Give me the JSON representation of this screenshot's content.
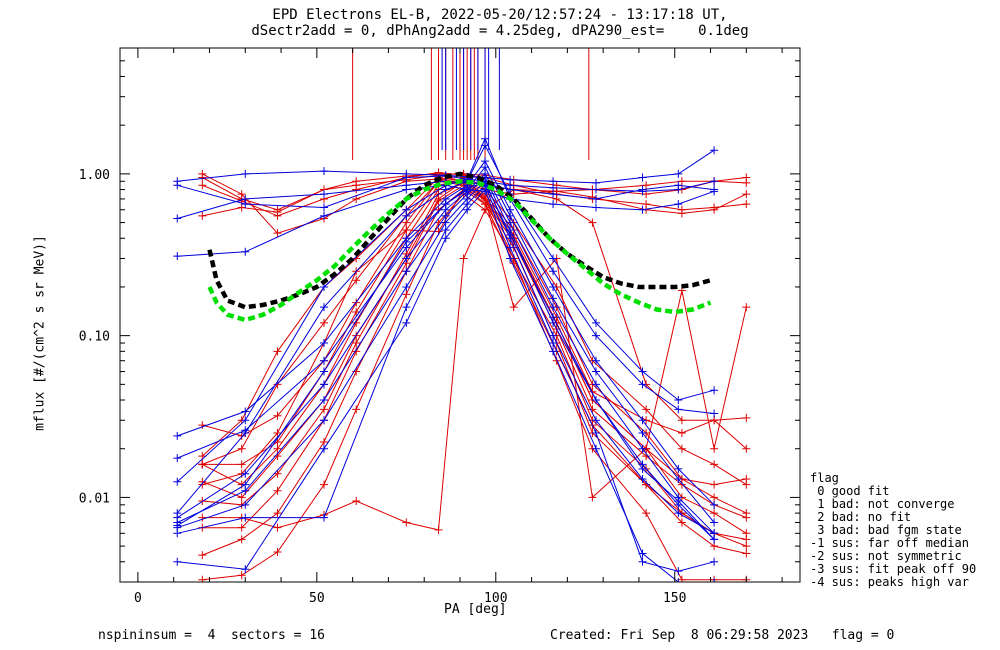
{
  "chart_data": {
    "type": "line",
    "title": "EPD Electrons EL-B, 2022-05-20/12:57:24 - 13:17:18 UT,",
    "subtitle": "dSectr2add = 0, dPhAng2add = 4.25deg, dPA290_est=    0.1deg",
    "xlabel": "PA [deg]",
    "ylabel": "mflux [#/(cm^2 s sr MeV)]",
    "xlim": [
      -5,
      185
    ],
    "ylim": [
      0.003,
      6
    ],
    "yscale": "log",
    "xticks": [
      0,
      50,
      100,
      150
    ],
    "yticks": [
      {
        "value": 0.01,
        "label": "0.01"
      },
      {
        "value": 0.1,
        "label": "0.10"
      },
      {
        "value": 1,
        "label": "1.00"
      }
    ],
    "grid": false,
    "legend_placement": "right",
    "colors": {
      "red": "#dd0000",
      "blue": "#0000dd",
      "black": "#000000",
      "green": "#00e000"
    },
    "fits": [
      {
        "color": "black",
        "x": [
          20,
          22,
          25,
          30,
          35,
          40,
          45,
          50,
          55,
          60,
          65,
          70,
          75,
          80,
          85,
          90,
          95,
          100,
          105,
          110,
          115,
          120,
          125,
          130,
          135,
          140,
          145,
          150,
          155,
          160
        ],
        "y": [
          0.34,
          0.22,
          0.165,
          0.15,
          0.155,
          0.165,
          0.18,
          0.2,
          0.24,
          0.3,
          0.4,
          0.53,
          0.7,
          0.85,
          0.95,
          1.0,
          0.95,
          0.85,
          0.7,
          0.53,
          0.4,
          0.32,
          0.27,
          0.23,
          0.21,
          0.2,
          0.2,
          0.2,
          0.205,
          0.22
        ]
      },
      {
        "color": "green",
        "x": [
          20,
          22,
          25,
          30,
          35,
          40,
          45,
          50,
          55,
          60,
          65,
          70,
          75,
          80,
          85,
          90,
          95,
          100,
          105,
          110,
          115,
          120,
          125,
          130,
          135,
          140,
          145,
          150,
          155,
          160
        ],
        "y": [
          0.2,
          0.16,
          0.135,
          0.125,
          0.135,
          0.155,
          0.185,
          0.22,
          0.27,
          0.35,
          0.45,
          0.57,
          0.7,
          0.8,
          0.87,
          0.9,
          0.88,
          0.8,
          0.68,
          0.52,
          0.4,
          0.32,
          0.26,
          0.21,
          0.18,
          0.16,
          0.145,
          0.14,
          0.145,
          0.16
        ]
      }
    ],
    "series": [
      {
        "color": "red",
        "x": [
          18,
          29,
          39,
          52,
          61,
          75,
          84,
          91,
          97,
          105,
          117,
          127,
          142,
          152,
          161,
          170
        ],
        "y": [
          0.95,
          0.7,
          0.6,
          0.8,
          0.9,
          0.97,
          1.0,
          1.0,
          0.98,
          0.92,
          0.85,
          0.8,
          0.75,
          0.8,
          0.9,
          0.95
        ]
      },
      {
        "color": "red",
        "x": [
          18,
          29,
          39,
          52,
          61,
          75,
          84,
          91,
          97,
          105,
          117,
          127,
          142,
          152,
          161,
          170
        ],
        "y": [
          0.85,
          0.68,
          0.55,
          0.7,
          0.8,
          0.95,
          1.02,
          0.98,
          0.95,
          0.85,
          0.75,
          0.7,
          0.65,
          0.6,
          0.62,
          0.65
        ]
      },
      {
        "color": "red",
        "x": [
          18,
          29,
          39,
          52,
          61,
          75,
          84,
          91,
          97,
          105,
          117,
          127,
          142,
          152,
          161,
          170
        ],
        "y": [
          0.55,
          0.62,
          0.58,
          0.8,
          0.85,
          0.92,
          0.98,
          0.9,
          0.85,
          0.8,
          0.78,
          0.8,
          0.85,
          0.9,
          0.9,
          0.88
        ]
      },
      {
        "color": "red",
        "x": [
          18,
          29,
          39,
          52,
          61,
          75,
          84,
          91,
          97,
          105,
          117,
          127,
          142,
          152,
          161,
          170
        ],
        "y": [
          1.0,
          0.75,
          0.43,
          0.53,
          0.7,
          0.9,
          0.93,
          0.88,
          0.8,
          0.75,
          0.78,
          0.72,
          0.6,
          0.57,
          0.6,
          0.75
        ]
      },
      {
        "color": "red",
        "x": [
          18,
          29,
          39,
          52,
          61,
          75,
          84,
          91,
          97,
          105,
          117,
          127,
          142,
          152,
          161,
          170
        ],
        "y": [
          0.016,
          0.012,
          0.02,
          0.05,
          0.12,
          0.4,
          0.8,
          0.95,
          0.7,
          0.4,
          0.12,
          0.04,
          0.02,
          0.01,
          0.008,
          0.006
        ]
      },
      {
        "color": "red",
        "x": [
          18,
          29,
          39,
          52,
          61,
          75,
          84,
          91,
          97,
          105,
          117,
          127,
          142,
          152,
          161,
          170
        ],
        "y": [
          0.0125,
          0.01,
          0.018,
          0.04,
          0.1,
          0.3,
          0.7,
          0.9,
          0.75,
          0.45,
          0.15,
          0.05,
          0.025,
          0.013,
          0.01,
          0.008
        ]
      },
      {
        "color": "red",
        "x": [
          18,
          29,
          39,
          52,
          61,
          75,
          84,
          91,
          97,
          105,
          117,
          127,
          142,
          152,
          161,
          170
        ],
        "y": [
          0.028,
          0.024,
          0.032,
          0.07,
          0.16,
          0.5,
          0.9,
          1.0,
          0.8,
          0.5,
          0.2,
          0.07,
          0.035,
          0.02,
          0.016,
          0.012
        ]
      },
      {
        "color": "red",
        "x": [
          18,
          29,
          39,
          52,
          61,
          75,
          84,
          91,
          97,
          105,
          117,
          127,
          142,
          152,
          161,
          170
        ],
        "y": [
          0.016,
          0.016,
          0.022,
          0.06,
          0.14,
          0.45,
          0.85,
          0.92,
          0.72,
          0.42,
          0.13,
          0.045,
          0.03,
          0.025,
          0.03,
          0.02
        ]
      },
      {
        "color": "red",
        "x": [
          18,
          29,
          39,
          52,
          61,
          75,
          84,
          91,
          97,
          105,
          117,
          127,
          142,
          152,
          161,
          170
        ],
        "y": [
          0.0095,
          0.009,
          0.014,
          0.035,
          0.09,
          0.32,
          0.75,
          0.88,
          0.68,
          0.38,
          0.11,
          0.035,
          0.018,
          0.012,
          0.009,
          0.0075
        ]
      },
      {
        "color": "red",
        "x": [
          18,
          29,
          39,
          52,
          61,
          75,
          84,
          91,
          97,
          105,
          117,
          127,
          142,
          152,
          161,
          170
        ],
        "y": [
          0.0065,
          0.0065,
          0.011,
          0.03,
          0.08,
          0.28,
          0.68,
          0.85,
          0.7,
          0.4,
          0.12,
          0.04,
          0.02,
          0.013,
          0.012,
          0.013
        ]
      },
      {
        "color": "red",
        "x": [
          18,
          29,
          39,
          52,
          61,
          75,
          84,
          91,
          97,
          105,
          117,
          127,
          142,
          152,
          161,
          170
        ],
        "y": [
          0.0044,
          0.0055,
          0.008,
          0.022,
          0.06,
          0.25,
          0.6,
          0.8,
          0.65,
          0.35,
          0.09,
          0.025,
          0.012,
          0.008,
          0.006,
          0.005
        ]
      },
      {
        "color": "red",
        "x": [
          18,
          29,
          39,
          52,
          61,
          75,
          84,
          91,
          97,
          105,
          117,
          127,
          142,
          152,
          161,
          170
        ],
        "y": [
          0.0031,
          0.0033,
          0.0046,
          0.012,
          0.035,
          0.18,
          0.5,
          0.75,
          0.6,
          0.3,
          0.07,
          0.02,
          0.008,
          0.0031,
          0.0031,
          0.0031
        ]
      },
      {
        "color": "red",
        "x": [
          18,
          29,
          39,
          52,
          61,
          75,
          84,
          91,
          97,
          105,
          117,
          127,
          142,
          152,
          161,
          170
        ],
        "y": [
          0.0075,
          0.0075,
          0.0065,
          0.0078,
          0.0095,
          0.007,
          0.0063,
          0.3,
          0.6,
          0.8,
          0.7,
          0.5,
          0.05,
          0.03,
          0.03,
          0.031
        ]
      },
      {
        "color": "red",
        "x": [
          18,
          29,
          39,
          52,
          61,
          75,
          84,
          91,
          97,
          105,
          117,
          127,
          142,
          152,
          161,
          170
        ],
        "y": [
          0.012,
          0.014,
          0.025,
          0.09,
          0.25,
          0.45,
          0.44,
          0.8,
          0.7,
          0.15,
          0.3,
          0.01,
          0.02,
          0.19,
          0.02,
          0.15
        ]
      },
      {
        "color": "red",
        "x": [
          18,
          29,
          39,
          52,
          61,
          75,
          84,
          91,
          97,
          105,
          117,
          127,
          142,
          152,
          161,
          170
        ],
        "y": [
          0.018,
          0.03,
          0.08,
          0.2,
          0.3,
          0.6,
          0.95,
          0.9,
          0.7,
          0.3,
          0.1,
          0.03,
          0.015,
          0.008,
          0.006,
          0.0055
        ]
      },
      {
        "color": "red",
        "x": [
          18,
          29,
          39,
          52,
          61,
          75,
          84,
          91,
          97,
          105,
          117,
          127,
          142,
          152,
          161,
          170
        ],
        "y": [
          0.016,
          0.02,
          0.05,
          0.12,
          0.22,
          0.55,
          0.9,
          0.85,
          0.65,
          0.28,
          0.08,
          0.028,
          0.012,
          0.007,
          0.005,
          0.0045
        ]
      },
      {
        "color": "blue",
        "x": [
          11,
          30,
          52,
          75,
          86,
          92,
          97,
          104,
          116,
          128,
          141,
          151,
          161
        ],
        "y": [
          0.9,
          1.0,
          1.04,
          1.0,
          0.98,
          0.96,
          0.95,
          0.92,
          0.9,
          0.88,
          0.95,
          1.0,
          1.4
        ]
      },
      {
        "color": "blue",
        "x": [
          11,
          30,
          52,
          75,
          86,
          92,
          97,
          104,
          116,
          128,
          141,
          151,
          161
        ],
        "y": [
          0.85,
          0.65,
          0.62,
          0.95,
          0.97,
          0.93,
          0.9,
          0.85,
          0.82,
          0.8,
          0.78,
          0.8,
          0.9
        ]
      },
      {
        "color": "blue",
        "x": [
          11,
          30,
          52,
          75,
          86,
          92,
          97,
          104,
          116,
          128,
          141,
          151,
          161
        ],
        "y": [
          0.53,
          0.7,
          0.75,
          0.85,
          0.9,
          0.88,
          0.87,
          0.8,
          0.75,
          0.7,
          0.8,
          0.85,
          0.8
        ]
      },
      {
        "color": "blue",
        "x": [
          11,
          30,
          52,
          75,
          86,
          92,
          97,
          104,
          116,
          128,
          141,
          151,
          161
        ],
        "y": [
          0.31,
          0.33,
          0.55,
          0.8,
          0.85,
          0.8,
          0.78,
          0.7,
          0.65,
          0.62,
          0.6,
          0.65,
          0.78
        ]
      },
      {
        "color": "blue",
        "x": [
          11,
          30,
          52,
          75,
          86,
          92,
          97,
          104,
          116,
          128,
          141,
          151,
          161
        ],
        "y": [
          0.024,
          0.034,
          0.09,
          0.4,
          0.7,
          0.85,
          1.2,
          0.6,
          0.2,
          0.07,
          0.03,
          0.015,
          0.009
        ]
      },
      {
        "color": "blue",
        "x": [
          11,
          30,
          52,
          75,
          86,
          92,
          97,
          104,
          116,
          128,
          141,
          151,
          161
        ],
        "y": [
          0.0175,
          0.026,
          0.07,
          0.35,
          0.65,
          0.8,
          1.1,
          0.55,
          0.17,
          0.06,
          0.025,
          0.013,
          0.007
        ]
      },
      {
        "color": "blue",
        "x": [
          11,
          30,
          52,
          75,
          86,
          92,
          97,
          104,
          116,
          128,
          141,
          151,
          161
        ],
        "y": [
          0.0075,
          0.014,
          0.05,
          0.3,
          0.6,
          0.78,
          1.0,
          0.5,
          0.15,
          0.05,
          0.02,
          0.01,
          0.006
        ]
      },
      {
        "color": "blue",
        "x": [
          11,
          30,
          52,
          75,
          86,
          92,
          97,
          104,
          116,
          128,
          141,
          151,
          161
        ],
        "y": [
          0.007,
          0.011,
          0.04,
          0.25,
          0.55,
          0.75,
          0.95,
          0.45,
          0.12,
          0.04,
          0.016,
          0.009,
          0.0055
        ]
      },
      {
        "color": "blue",
        "x": [
          11,
          30,
          52,
          75,
          86,
          92,
          97,
          104,
          116,
          128,
          141,
          151,
          161
        ],
        "y": [
          0.0065,
          0.009,
          0.03,
          0.2,
          0.5,
          0.7,
          0.9,
          0.4,
          0.1,
          0.03,
          0.013,
          0.008,
          0.006
        ]
      },
      {
        "color": "blue",
        "x": [
          11,
          30,
          52,
          75,
          86,
          92,
          97,
          104,
          116,
          128,
          141,
          151,
          161
        ],
        "y": [
          0.006,
          0.0075,
          0.0075,
          0.15,
          0.45,
          0.65,
          0.85,
          0.35,
          0.09,
          0.025,
          0.004,
          0.0035,
          0.004
        ]
      },
      {
        "color": "blue",
        "x": [
          11,
          30,
          52,
          75,
          86,
          92,
          97,
          104,
          116,
          128,
          141,
          151,
          161
        ],
        "y": [
          0.004,
          0.0036,
          0.02,
          0.12,
          0.4,
          0.6,
          0.8,
          0.3,
          0.08,
          0.02,
          0.0045,
          0.003,
          0.003
        ]
      },
      {
        "color": "blue",
        "x": [
          11,
          30,
          52,
          75,
          86,
          92,
          97,
          104,
          116,
          128,
          141,
          151,
          161
        ],
        "y": [
          0.008,
          0.025,
          0.15,
          0.55,
          0.8,
          0.9,
          1.5,
          0.75,
          0.3,
          0.12,
          0.06,
          0.04,
          0.046
        ]
      },
      {
        "color": "blue",
        "x": [
          11,
          30,
          52,
          75,
          86,
          92,
          97,
          104,
          116,
          128,
          141,
          151,
          161
        ],
        "y": [
          0.0125,
          0.03,
          0.2,
          0.6,
          0.85,
          0.92,
          1.65,
          0.7,
          0.25,
          0.1,
          0.05,
          0.035,
          0.033
        ]
      },
      {
        "color": "blue",
        "x": [
          11,
          30,
          52,
          75,
          86,
          92,
          97,
          104,
          116,
          128,
          141,
          151,
          161
        ],
        "y": [
          0.0067,
          0.012,
          0.06,
          0.38,
          0.65,
          0.82,
          0.88,
          0.42,
          0.13,
          0.04,
          0.015,
          0.0095,
          0.0055
        ]
      }
    ],
    "spikes": [
      {
        "color": "red",
        "x": [
          60,
          82,
          84,
          86,
          88,
          90,
          91,
          92,
          93,
          94,
          95,
          97,
          126
        ]
      },
      {
        "color": "blue",
        "x": [
          85,
          86,
          89,
          91,
          93,
          95,
          97,
          98,
          101
        ]
      }
    ]
  },
  "legend": {
    "title": "flag",
    "items": [
      " 0 good fit",
      " 1 bad: not converge",
      " 2 bad: no fit",
      " 3 bad: bad fgm state",
      "-1 sus: far off median",
      "-2 sus: not symmetric",
      "-3 sus: fit peak off 90",
      "-4 sus: peaks high var"
    ]
  },
  "footer": {
    "left": "nspininsum =  4  sectors = 16",
    "right": "Created: Fri Sep  8 06:29:58 2023   flag = 0"
  }
}
